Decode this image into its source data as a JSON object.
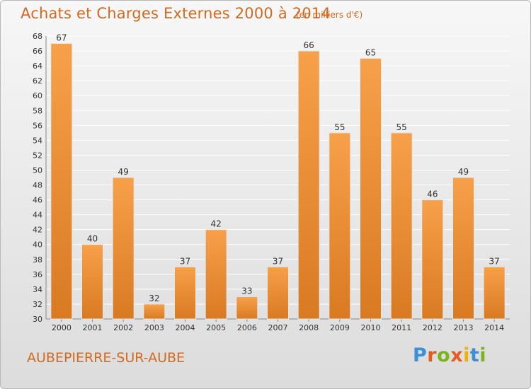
{
  "header": {
    "title": "Achats et Charges Externes 2000 à 2014",
    "subtitle": "(en milliers d'€)"
  },
  "footer": {
    "place": "AUBEPIERRE-SUR-AUBE",
    "logo_letters": [
      "P",
      "r",
      "o",
      "x",
      "i",
      "t",
      "i"
    ]
  },
  "colors": {
    "bar_light": "#f7a04a",
    "bar_dark": "#d97a22",
    "title": "#d2691e",
    "grid": "#ffffff"
  },
  "chart_data": {
    "type": "bar",
    "categories": [
      "2000",
      "2001",
      "2002",
      "2003",
      "2004",
      "2005",
      "2006",
      "2007",
      "2008",
      "2009",
      "2010",
      "2011",
      "2012",
      "2013",
      "2014"
    ],
    "values": [
      67,
      40,
      49,
      32,
      37,
      42,
      33,
      37,
      66,
      55,
      65,
      55,
      46,
      49,
      37
    ],
    "ylim": [
      30,
      68
    ],
    "yticks": [
      30,
      32,
      34,
      36,
      38,
      40,
      42,
      44,
      46,
      48,
      50,
      52,
      54,
      56,
      58,
      60,
      62,
      64,
      66,
      68
    ],
    "grid": true,
    "data_labels": true
  }
}
